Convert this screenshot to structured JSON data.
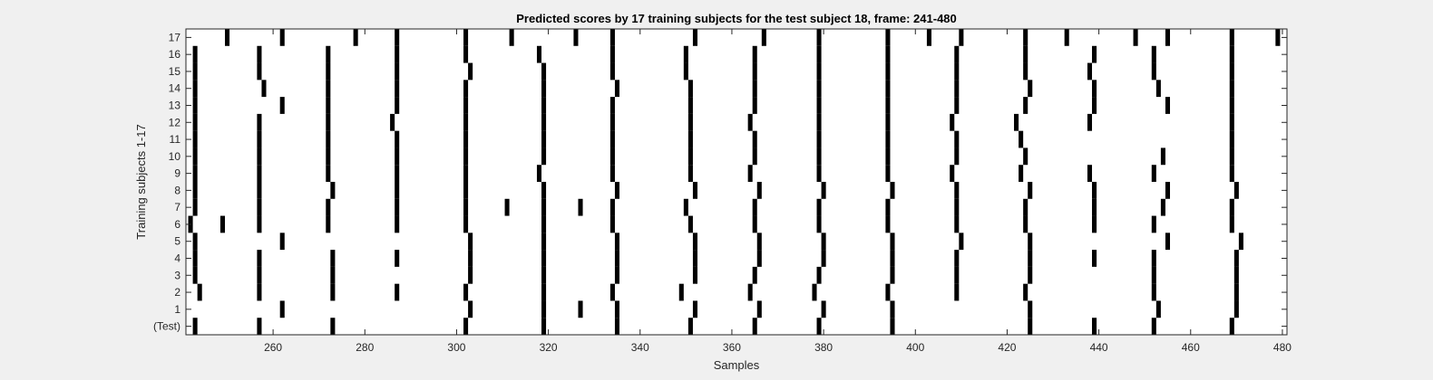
{
  "chart_data": {
    "type": "heatmap",
    "title": "Predicted scores by 17 training subjects for the test subject 18, frame: 241-480",
    "xlabel": "Samples",
    "ylabel": "Training subjects 1-17",
    "xlim": [
      241,
      481
    ],
    "xticks": [
      260,
      280,
      300,
      320,
      340,
      360,
      380,
      400,
      420,
      440,
      460,
      480
    ],
    "row_labels": [
      "(Test)",
      "1",
      "2",
      "3",
      "4",
      "5",
      "6",
      "7",
      "8",
      "9",
      "10",
      "11",
      "12",
      "13",
      "14",
      "15",
      "16",
      "17"
    ],
    "grid": false,
    "colors": {
      "background": "#ffffff",
      "mark": "#000000",
      "figure": "#f0f0f0"
    },
    "rows": [
      {
        "label": "(Test)",
        "values": [
          243,
          257,
          273,
          302,
          319,
          335,
          351,
          365,
          379,
          395,
          425,
          439,
          452,
          469
        ]
      },
      {
        "label": "1",
        "values": [
          262,
          303,
          319,
          327,
          335,
          352,
          366,
          380,
          395,
          425,
          453,
          470
        ]
      },
      {
        "label": "2",
        "values": [
          244,
          257,
          273,
          287,
          302,
          319,
          334,
          349,
          364,
          378,
          394,
          409,
          424,
          452,
          470
        ]
      },
      {
        "label": "3",
        "values": [
          243,
          257,
          273,
          303,
          319,
          335,
          352,
          365,
          379,
          395,
          409,
          425,
          452,
          470
        ]
      },
      {
        "label": "4",
        "values": [
          243,
          257,
          273,
          287,
          303,
          319,
          335,
          352,
          366,
          380,
          395,
          409,
          425,
          439,
          452,
          470
        ]
      },
      {
        "label": "5",
        "values": [
          243,
          262,
          303,
          319,
          335,
          352,
          366,
          380,
          395,
          410,
          425,
          455,
          471
        ]
      },
      {
        "label": "6",
        "values": [
          242,
          249,
          257,
          272,
          287,
          302,
          319,
          334,
          351,
          365,
          379,
          394,
          409,
          424,
          439,
          452,
          469
        ]
      },
      {
        "label": "7",
        "values": [
          243,
          257,
          272,
          287,
          302,
          311,
          319,
          327,
          334,
          350,
          365,
          379,
          394,
          409,
          424,
          439,
          454,
          469
        ]
      },
      {
        "label": "8",
        "values": [
          243,
          257,
          273,
          287,
          302,
          319,
          335,
          352,
          366,
          380,
          395,
          409,
          425,
          439,
          455,
          470
        ]
      },
      {
        "label": "9",
        "values": [
          243,
          257,
          272,
          287,
          302,
          318,
          334,
          351,
          364,
          379,
          394,
          408,
          423,
          438,
          452,
          469
        ]
      },
      {
        "label": "10",
        "values": [
          243,
          257,
          272,
          287,
          302,
          319,
          334,
          351,
          365,
          379,
          394,
          409,
          424,
          454,
          469
        ]
      },
      {
        "label": "11",
        "values": [
          243,
          257,
          272,
          287,
          302,
          319,
          334,
          351,
          365,
          379,
          394,
          409,
          423,
          469
        ]
      },
      {
        "label": "12",
        "values": [
          243,
          257,
          272,
          286,
          302,
          319,
          334,
          351,
          364,
          379,
          394,
          408,
          422,
          438,
          469
        ]
      },
      {
        "label": "13",
        "values": [
          243,
          262,
          272,
          287,
          302,
          319,
          334,
          351,
          365,
          379,
          394,
          409,
          424,
          439,
          455,
          469
        ]
      },
      {
        "label": "14",
        "values": [
          243,
          258,
          272,
          287,
          302,
          319,
          335,
          351,
          365,
          379,
          394,
          409,
          425,
          439,
          453,
          469
        ]
      },
      {
        "label": "15",
        "values": [
          243,
          257,
          272,
          287,
          303,
          319,
          334,
          350,
          365,
          379,
          394,
          409,
          424,
          438,
          452,
          469
        ]
      },
      {
        "label": "16",
        "values": [
          243,
          257,
          272,
          287,
          302,
          318,
          334,
          350,
          365,
          379,
          394,
          409,
          424,
          439,
          452,
          469
        ]
      },
      {
        "label": "17",
        "values": [
          250,
          262,
          278,
          287,
          302,
          312,
          326,
          334,
          352,
          367,
          379,
          394,
          403,
          410,
          424,
          433,
          448,
          455,
          469,
          479
        ]
      }
    ]
  }
}
